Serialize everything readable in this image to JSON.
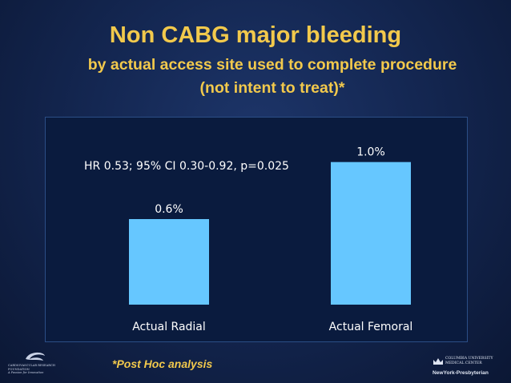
{
  "slide": {
    "title": "Non CABG major bleeding",
    "subtitle": "by actual access site used to complete procedure (not intent to treat)*",
    "footnote": "*Post Hoc analysis"
  },
  "chart_data": {
    "type": "bar",
    "categories": [
      "Actual Radial",
      "Actual Femoral"
    ],
    "values": [
      0.6,
      1.0
    ],
    "data_labels": [
      "0.6%",
      "1.0%"
    ],
    "annotation": "HR 0.53; 95% CI 0.30-0.92, p=0.025",
    "ylim": [
      0,
      1.2
    ],
    "grid": false,
    "legend": "none",
    "bar_color": "#66c7ff"
  },
  "logos": {
    "left_name": "CARDIOVASCULAR RESEARCH FOUNDATION",
    "left_tagline": "A Passion for Innovation",
    "right_university": "COLUMBIA UNIVERSITY MEDICAL CENTER",
    "right_hospital": "NewYork-Presbyterian"
  },
  "colors": {
    "title": "#f2c94c",
    "background": "#142752",
    "panel": "#0a1b3e"
  }
}
